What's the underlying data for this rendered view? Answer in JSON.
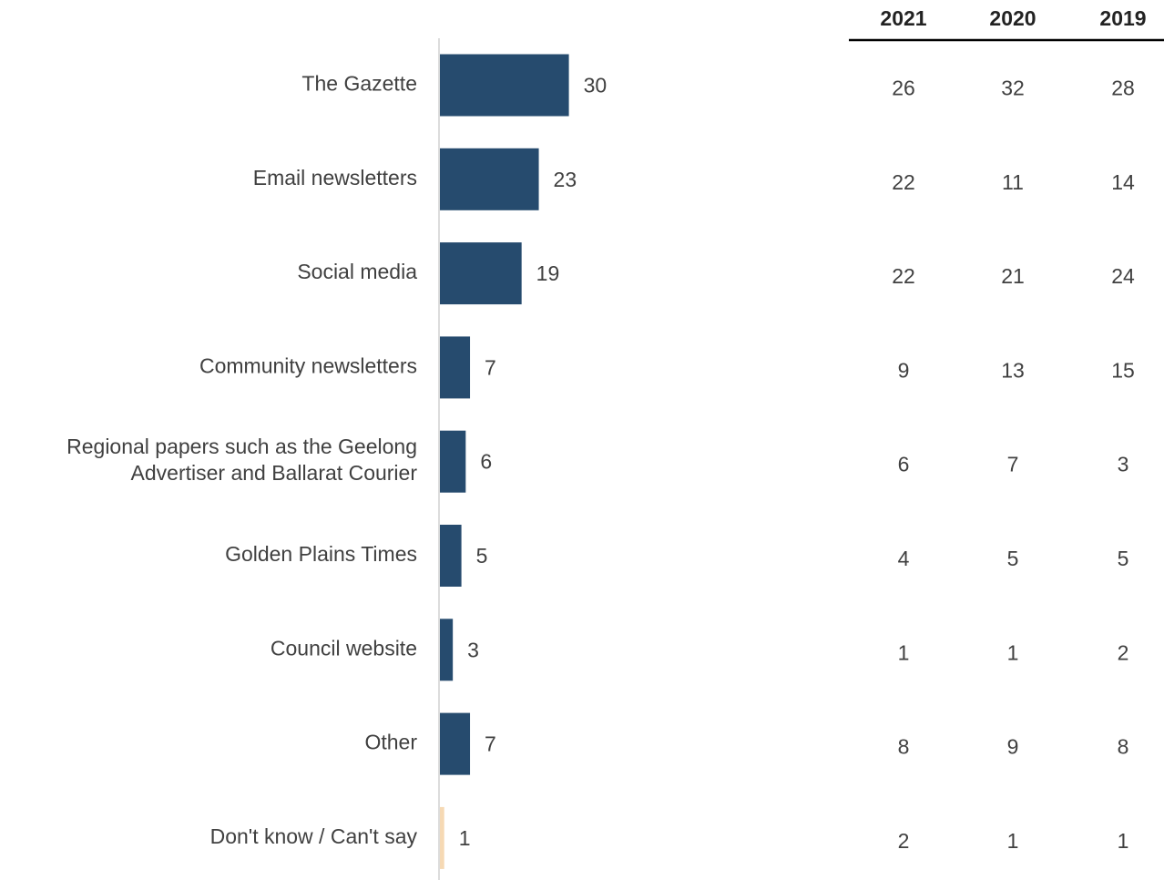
{
  "chart_data": {
    "type": "bar",
    "orientation": "horizontal",
    "categories": [
      [
        "The Gazette"
      ],
      [
        "Email newsletters"
      ],
      [
        "Social media"
      ],
      [
        "Community newsletters"
      ],
      [
        "Regional papers such as the Geelong",
        "Advertiser and Ballarat Courier"
      ],
      [
        "Golden Plains Times"
      ],
      [
        "Council website"
      ],
      [
        "Other"
      ],
      [
        "Don't know / Can't say"
      ]
    ],
    "values": [
      30,
      23,
      19,
      7,
      6,
      5,
      3,
      7,
      1
    ],
    "bar_colors": [
      "#264b6e",
      "#264b6e",
      "#264b6e",
      "#264b6e",
      "#264b6e",
      "#264b6e",
      "#264b6e",
      "#264b6e",
      "#f6d9b4"
    ],
    "table": {
      "columns": [
        "2021",
        "2020",
        "2019"
      ],
      "rows": [
        [
          "26",
          "32",
          "28"
        ],
        [
          "22",
          "11",
          "14"
        ],
        [
          "22",
          "21",
          "24"
        ],
        [
          "9",
          "13",
          "15"
        ],
        [
          "6",
          "7",
          "3"
        ],
        [
          "4",
          "5",
          "5"
        ],
        [
          "1",
          "1",
          "2"
        ],
        [
          "8",
          "9",
          "8"
        ],
        [
          "2",
          "1",
          "1"
        ]
      ]
    },
    "colors": {
      "bar": "#264b6e",
      "dont_know_bar": "#f6d9b4",
      "axis": "#d0d0d0",
      "header_rule": "#000000",
      "text": "#404040"
    }
  }
}
